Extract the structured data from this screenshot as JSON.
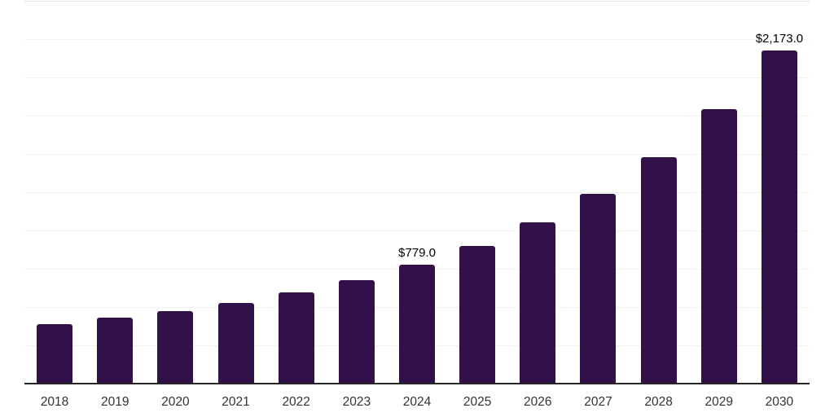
{
  "chart_data": {
    "type": "bar",
    "title": "",
    "xlabel": "",
    "ylabel": "",
    "categories": [
      "2018",
      "2019",
      "2020",
      "2021",
      "2022",
      "2023",
      "2024",
      "2025",
      "2026",
      "2027",
      "2028",
      "2029",
      "2030"
    ],
    "values": [
      390,
      432,
      473,
      528,
      598,
      675,
      779,
      900,
      1053,
      1240,
      1480,
      1790,
      2173
    ],
    "labeled_points": [
      {
        "category": "2024",
        "label": "$779.0"
      },
      {
        "category": "2030",
        "label": "$2,173.0"
      }
    ],
    "ylim": [
      0,
      2500
    ],
    "gridline_step": 250,
    "grid": true,
    "legend": "none",
    "colors": {
      "bar": "#321148",
      "axis_line": "#262626",
      "gridline": "#f2f2f2",
      "top_gridline": "#e4e4e4",
      "tick_label": "#333333",
      "data_label": "#000000",
      "background": "#ffffff"
    }
  }
}
